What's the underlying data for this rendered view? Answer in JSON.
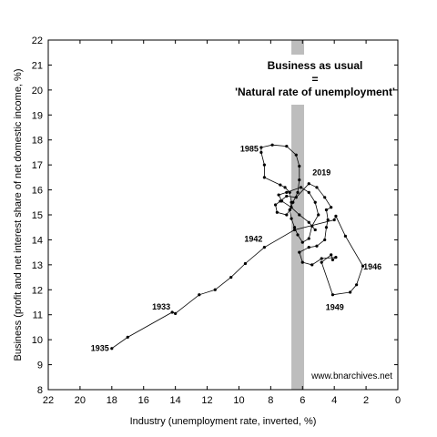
{
  "chart_data": {
    "type": "scatter",
    "title": "",
    "xlabel": "Industry (unemployment rate, inverted, %)",
    "ylabel": "Business (profit and net interest share of net domestic income, %)",
    "x_inverted": true,
    "xlim": [
      0,
      22
    ],
    "ylim": [
      8,
      22
    ],
    "x_ticks": [
      "22",
      "20",
      "18",
      "16",
      "14",
      "12",
      "10",
      "8",
      "6",
      "4",
      "2",
      "0"
    ],
    "y_ticks": [
      "8",
      "9",
      "10",
      "11",
      "12",
      "13",
      "14",
      "15",
      "16",
      "17",
      "18",
      "19",
      "20",
      "21",
      "22"
    ],
    "grid": false,
    "band": {
      "x_range": [
        5.9,
        6.7
      ]
    },
    "annotation": [
      "Business as usual",
      "=",
      "'Natural rate of unemployment'"
    ],
    "watermark": "www.bnarchives.net",
    "point_labels": [
      {
        "text": "1935",
        "x": 18.0,
        "y": 9.65
      },
      {
        "text": "1933",
        "x": 14.2,
        "y": 11.1
      },
      {
        "text": "1942",
        "x": 8.4,
        "y": 13.75
      },
      {
        "text": "1985",
        "x": 8.6,
        "y": 17.6
      },
      {
        "text": "2019",
        "x": 5.6,
        "y": 16.4
      },
      {
        "text": "1946",
        "x": 2.4,
        "y": 12.95
      },
      {
        "text": "1949",
        "x": 4.2,
        "y": 11.7
      }
    ],
    "series": [
      {
        "points": [
          [
            18.0,
            9.65
          ],
          [
            17.0,
            10.1
          ],
          [
            14.2,
            11.1
          ],
          [
            14.0,
            11.05
          ],
          [
            12.5,
            11.8
          ],
          [
            11.5,
            12.0
          ],
          [
            10.5,
            12.5
          ],
          [
            9.6,
            13.05
          ],
          [
            8.4,
            13.7
          ],
          [
            6.5,
            14.4
          ],
          [
            4.0,
            14.8
          ],
          [
            3.9,
            14.95
          ],
          [
            3.3,
            14.15
          ],
          [
            2.2,
            12.95
          ],
          [
            2.6,
            12.2
          ],
          [
            3.0,
            11.9
          ],
          [
            4.1,
            11.8
          ],
          [
            4.8,
            13.1
          ],
          [
            4.2,
            13.4
          ],
          [
            4.1,
            13.2
          ],
          [
            3.9,
            13.3
          ],
          [
            4.8,
            13.25
          ],
          [
            5.4,
            13.0
          ],
          [
            6.0,
            13.1
          ],
          [
            6.2,
            13.5
          ],
          [
            5.6,
            13.7
          ],
          [
            5.1,
            13.75
          ],
          [
            4.6,
            14.0
          ],
          [
            4.5,
            14.5
          ],
          [
            4.4,
            14.8
          ],
          [
            4.5,
            15.2
          ],
          [
            4.2,
            15.3
          ],
          [
            4.6,
            15.7
          ],
          [
            5.1,
            16.1
          ],
          [
            5.6,
            16.25
          ],
          [
            6.4,
            15.7
          ],
          [
            7.0,
            15.75
          ],
          [
            7.4,
            15.55
          ],
          [
            7.7,
            15.4
          ],
          [
            7.6,
            15.1
          ],
          [
            7.0,
            15.0
          ],
          [
            6.8,
            15.2
          ],
          [
            6.7,
            15.5
          ],
          [
            6.8,
            15.9
          ],
          [
            7.1,
            16.1
          ],
          [
            7.4,
            16.2
          ],
          [
            8.4,
            16.5
          ],
          [
            8.4,
            17.0
          ],
          [
            8.6,
            17.5
          ],
          [
            8.6,
            17.7
          ],
          [
            7.9,
            17.8
          ],
          [
            7.0,
            17.75
          ],
          [
            6.4,
            17.4
          ],
          [
            6.2,
            16.95
          ],
          [
            6.2,
            16.4
          ],
          [
            6.3,
            15.9
          ],
          [
            6.6,
            15.5
          ],
          [
            6.8,
            15.2
          ],
          [
            6.7,
            14.85
          ],
          [
            6.5,
            14.5
          ],
          [
            6.3,
            14.2
          ],
          [
            6.0,
            13.9
          ],
          [
            5.6,
            14.05
          ],
          [
            5.4,
            14.55
          ],
          [
            5.0,
            15.0
          ],
          [
            5.2,
            15.5
          ],
          [
            5.6,
            15.9
          ],
          [
            6.1,
            16.1
          ],
          [
            7.0,
            15.9
          ],
          [
            7.5,
            15.8
          ],
          [
            7.3,
            15.55
          ],
          [
            6.7,
            15.3
          ],
          [
            6.2,
            15.0
          ],
          [
            5.6,
            14.7
          ],
          [
            5.2,
            14.4
          ]
        ]
      }
    ]
  }
}
